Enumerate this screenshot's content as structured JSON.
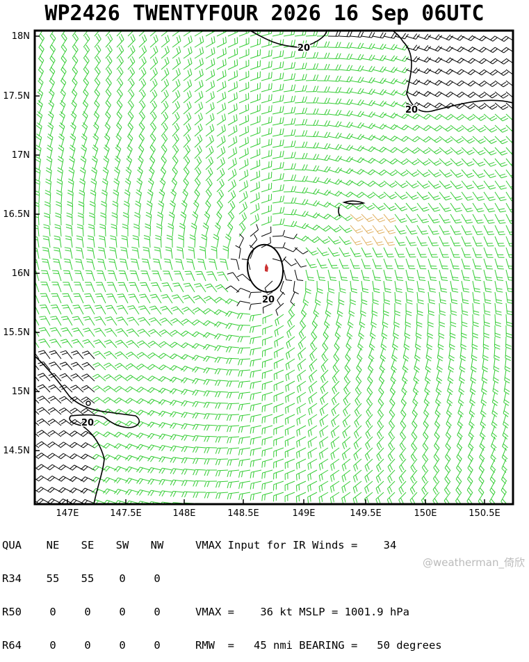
{
  "title": "WP2426 TWENTYFOUR 2026 16 Sep 06UTC",
  "axes": {
    "lat_labels": [
      "18N",
      "17.5N",
      "17N",
      "16.5N",
      "16N",
      "15.5N",
      "15N",
      "14.5N"
    ],
    "lon_labels": [
      "147E",
      "147.5E",
      "148E",
      "148.5E",
      "149E",
      "149.5E",
      "150E",
      "150.5E"
    ]
  },
  "contour_labels": [
    "20",
    "20",
    "20",
    "20"
  ],
  "storm_center": {
    "lat": 16.05,
    "lon": 148.8
  },
  "colors": {
    "wind_barb_light": "#33cc33",
    "wind_barb_strong": "#000000",
    "wind_barb_alt": "#e0b060",
    "center_marker": "#cc3333"
  },
  "table": {
    "header": [
      "QUA",
      "NE",
      "SE",
      "SW",
      "NW"
    ],
    "rows": [
      {
        "label": "R34",
        "values": [
          "55",
          "55",
          "0",
          "0"
        ]
      },
      {
        "label": "R50",
        "values": [
          "0",
          "0",
          "0",
          "0"
        ]
      },
      {
        "label": "R64",
        "values": [
          "0",
          "0",
          "0",
          "0"
        ]
      }
    ],
    "info": [
      "VMAX Input for IR Winds =    34",
      "",
      "VMAX =    36 kt MSLP = 1001.9 hPa",
      "RMW  =   45 nmi BEARING =   50 degrees"
    ]
  },
  "watermark": "@weatherman_倚欣"
}
